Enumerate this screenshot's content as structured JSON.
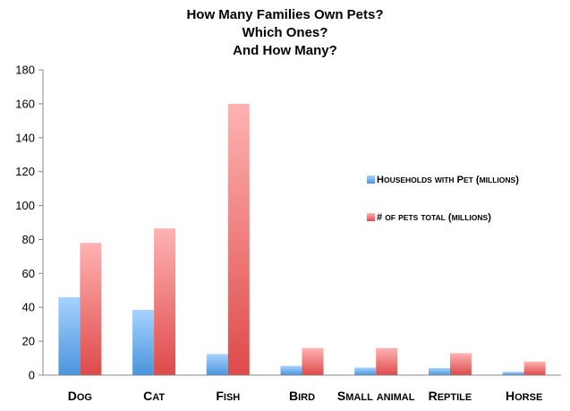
{
  "chart_data": {
    "type": "bar",
    "title_lines": [
      "How Many Families Own Pets?",
      "Which Ones?",
      "And How Many?"
    ],
    "xlabel": "",
    "ylabel": "",
    "ylim": [
      0,
      180
    ],
    "y_ticks": [
      0,
      20,
      40,
      60,
      80,
      100,
      120,
      140,
      160,
      180
    ],
    "grid": false,
    "legend_position": "right",
    "categories": [
      "Dog",
      "Cat",
      "Fish",
      "Bird",
      "Small animal",
      "Reptile",
      "Horse"
    ],
    "series": [
      {
        "name": "Households with Pet (millions)",
        "values": [
          46,
          38.5,
          12.5,
          5.5,
          4.5,
          4.2,
          2
        ],
        "color_top": "#a6d2ff",
        "color_bottom": "#4a95dc"
      },
      {
        "name": "# of pets total (millions)",
        "values": [
          78,
          86.5,
          160,
          16,
          16,
          13,
          8
        ],
        "color_top": "#ffb2b2",
        "color_bottom": "#de4a4a"
      }
    ]
  }
}
